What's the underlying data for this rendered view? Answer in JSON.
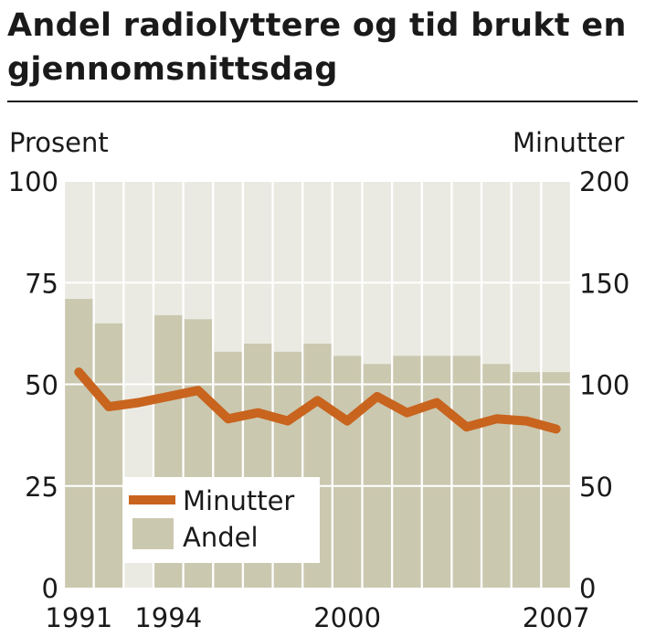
{
  "title": "Andel radiolyttere og tid brukt en gjennomsnittsdag",
  "chart_data": {
    "type": "bar+line",
    "title": "Andel radiolyttere og tid brukt en gjennomsnittsdag",
    "x": [
      1991,
      1992,
      1993,
      1994,
      1995,
      1996,
      1997,
      1998,
      1999,
      2000,
      2001,
      2002,
      2003,
      2004,
      2005,
      2006,
      2007
    ],
    "x_tick_labels": [
      "1991",
      "1994",
      "2000",
      "2007"
    ],
    "y_left": {
      "label": "Prosent",
      "lim": [
        0,
        100
      ],
      "ticks": [
        "0",
        "25",
        "50",
        "75",
        "100"
      ]
    },
    "y_right": {
      "label": "Minutter",
      "lim": [
        0,
        200
      ],
      "ticks": [
        "0",
        "50",
        "100",
        "150",
        "200"
      ]
    },
    "grid": "horizontal",
    "series": [
      {
        "name": "Andel",
        "kind": "bar",
        "axis": "left",
        "color": "#cbc8b0",
        "values": [
          71,
          65,
          null,
          67,
          66,
          58,
          60,
          58,
          60,
          57,
          55,
          57,
          57,
          57,
          55,
          53,
          53
        ]
      },
      {
        "name": "Minutter",
        "kind": "line",
        "axis": "right",
        "color": "#c8641e",
        "values": [
          106,
          89,
          91,
          94,
          97,
          83,
          86,
          82,
          92,
          82,
          94,
          86,
          91,
          79,
          83,
          82,
          78
        ]
      }
    ],
    "legend": {
      "position": "bottom-left",
      "entries": [
        "Minutter",
        "Andel"
      ]
    }
  }
}
